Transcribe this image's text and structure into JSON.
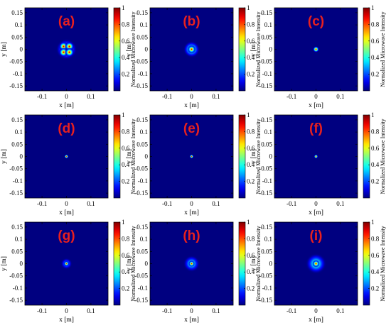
{
  "chart_data": [
    {
      "label": "(a)",
      "type": "heatmap",
      "xlabel": "x  [m]",
      "ylabel": "y  [m]",
      "colorbar_label": "Normalized Microwave Intensity",
      "xticks": [
        "-0.1",
        "0",
        "0.1"
      ],
      "yticks": [
        "0.15",
        "0.1",
        "0.05",
        "0",
        "-0.05",
        "-0.1",
        "-0.15"
      ],
      "xlim": [
        -0.17,
        0.17
      ],
      "ylim": [
        -0.17,
        0.17
      ],
      "colorbar_ticks": [
        "1",
        "0.8",
        "0.6",
        "0.4",
        "0.2"
      ],
      "crange": [
        0,
        1
      ],
      "spots": [
        {
          "x": -0.012,
          "y": 0.012,
          "intensity": 1.0,
          "radius": 0.009
        },
        {
          "x": 0.012,
          "y": 0.012,
          "intensity": 1.0,
          "radius": 0.009
        },
        {
          "x": -0.012,
          "y": -0.012,
          "intensity": 1.0,
          "radius": 0.009
        },
        {
          "x": 0.012,
          "y": -0.012,
          "intensity": 1.0,
          "radius": 0.009
        },
        {
          "x": 0,
          "y": 0,
          "intensity": 0.75,
          "radius": 0.02
        }
      ]
    },
    {
      "label": "(b)",
      "type": "heatmap",
      "xlabel": "x  [m]",
      "ylabel": "y  [m]",
      "colorbar_label": "Normalized Microwave Intensity",
      "xticks": [
        "-0.1",
        "0",
        "0.1"
      ],
      "yticks": [
        "0.15",
        "0.1",
        "0.05",
        "0",
        "-0.05",
        "-0.1",
        "-0.15"
      ],
      "xlim": [
        -0.17,
        0.17
      ],
      "ylim": [
        -0.17,
        0.17
      ],
      "colorbar_ticks": [
        "1",
        "0.8",
        "0.6",
        "0.4",
        "0.2"
      ],
      "crange": [
        0,
        1
      ],
      "spots": [
        {
          "x": 0,
          "y": 0,
          "intensity": 1.0,
          "radius": 0.008
        },
        {
          "x": 0,
          "y": 0,
          "intensity": 0.7,
          "radius": 0.016
        }
      ]
    },
    {
      "label": "(c)",
      "type": "heatmap",
      "xlabel": "x  [m]",
      "ylabel": "y  [m]",
      "colorbar_label": "Normalized Microwave Intensity",
      "xticks": [
        "-0.1",
        "0",
        "0.1"
      ],
      "yticks": [
        "0.15",
        "0.1",
        "0.05",
        "0",
        "-0.05",
        "-0.1",
        "-0.15"
      ],
      "xlim": [
        -0.17,
        0.17
      ],
      "ylim": [
        -0.17,
        0.17
      ],
      "colorbar_ticks": [
        "1",
        "0.8",
        "0.6",
        "0.4",
        "0.2"
      ],
      "crange": [
        0,
        1
      ],
      "spots": [
        {
          "x": 0,
          "y": 0,
          "intensity": 1.0,
          "radius": 0.006
        }
      ]
    },
    {
      "label": "(d)",
      "type": "heatmap",
      "xlabel": "x  [m]",
      "ylabel": "y  [m]",
      "colorbar_label": "Normalized Microwave Intensity",
      "xticks": [
        "-0.1",
        "0",
        "0.1"
      ],
      "yticks": [
        "0.15",
        "0.1",
        "0.05",
        "0",
        "-0.05",
        "-0.1",
        "-0.15"
      ],
      "xlim": [
        -0.17,
        0.17
      ],
      "ylim": [
        -0.17,
        0.17
      ],
      "colorbar_ticks": [
        "1",
        "0.8",
        "0.6",
        "0.4",
        "0.2"
      ],
      "crange": [
        0,
        1
      ],
      "spots": [
        {
          "x": 0,
          "y": 0,
          "intensity": 1.0,
          "radius": 0.004
        }
      ]
    },
    {
      "label": "(e)",
      "type": "heatmap",
      "xlabel": "x  [m]",
      "ylabel": "y  [m]",
      "colorbar_label": "Normalized Microwave Intensity",
      "xticks": [
        "-0.1",
        "0",
        "0.1"
      ],
      "yticks": [
        "0.15",
        "0.1",
        "0.05",
        "0",
        "-0.05",
        "-0.1",
        "-0.15"
      ],
      "xlim": [
        -0.17,
        0.17
      ],
      "ylim": [
        -0.17,
        0.17
      ],
      "colorbar_ticks": [
        "1",
        "0.8",
        "0.6",
        "0.4",
        "0.2"
      ],
      "crange": [
        0,
        1
      ],
      "spots": [
        {
          "x": 0,
          "y": 0,
          "intensity": 1.0,
          "radius": 0.004
        }
      ]
    },
    {
      "label": "(f)",
      "type": "heatmap",
      "xlabel": "x  [m]",
      "ylabel": "y  [m]",
      "colorbar_label": "Normalized Microwave Intensity",
      "xticks": [
        "-0.1",
        "0",
        "0.1"
      ],
      "yticks": [
        "0.15",
        "0.1",
        "0.05",
        "0",
        "-0.05",
        "-0.1",
        "-0.15"
      ],
      "xlim": [
        -0.17,
        0.17
      ],
      "ylim": [
        -0.17,
        0.17
      ],
      "colorbar_ticks": [
        "1",
        "0.8",
        "0.6",
        "0.4",
        "0.2"
      ],
      "crange": [
        0,
        1
      ],
      "spots": [
        {
          "x": 0,
          "y": 0,
          "intensity": 1.0,
          "radius": 0.004
        }
      ]
    },
    {
      "label": "(g)",
      "type": "heatmap",
      "xlabel": "x  [m]",
      "ylabel": "y  [m]",
      "colorbar_label": "Normalized Microwave Intensity",
      "xticks": [
        "-0.1",
        "0",
        "0.1"
      ],
      "yticks": [
        "0.15",
        "0.1",
        "0.05",
        "0",
        "-0.05",
        "-0.1",
        "-0.15"
      ],
      "xlim": [
        -0.17,
        0.17
      ],
      "ylim": [
        -0.17,
        0.17
      ],
      "colorbar_ticks": [
        "1",
        "0.8",
        "0.6",
        "0.4",
        "0.2"
      ],
      "crange": [
        0,
        1
      ],
      "spots": [
        {
          "x": 0,
          "y": 0,
          "intensity": 1.0,
          "radius": 0.005
        },
        {
          "x": 0,
          "y": 0,
          "intensity": 0.45,
          "radius": 0.011
        }
      ]
    },
    {
      "label": "(h)",
      "type": "heatmap",
      "xlabel": "x  [m]",
      "ylabel": "y  [m]",
      "colorbar_label": "Normalized Microwave Intensity",
      "xticks": [
        "-0.1",
        "0",
        "0.1"
      ],
      "yticks": [
        "0.15",
        "0.1",
        "0.05",
        "0",
        "-0.05",
        "-0.1",
        "-0.15"
      ],
      "xlim": [
        -0.17,
        0.17
      ],
      "ylim": [
        -0.17,
        0.17
      ],
      "colorbar_ticks": [
        "1",
        "0.8",
        "0.6",
        "0.4",
        "0.2"
      ],
      "crange": [
        0,
        1
      ],
      "spots": [
        {
          "x": 0,
          "y": 0,
          "intensity": 1.0,
          "radius": 0.006
        },
        {
          "x": 0,
          "y": 0,
          "intensity": 0.55,
          "radius": 0.016
        }
      ]
    },
    {
      "label": "(i)",
      "type": "heatmap",
      "xlabel": "x  [m]",
      "ylabel": "y  [m]",
      "colorbar_label": "Normalized Microwave Intensity",
      "xticks": [
        "-0.1",
        "0",
        "0.1"
      ],
      "yticks": [
        "0.15",
        "0.1",
        "0.05",
        "0",
        "-0.05",
        "-0.1",
        "-0.15"
      ],
      "xlim": [
        -0.17,
        0.17
      ],
      "ylim": [
        -0.17,
        0.17
      ],
      "colorbar_ticks": [
        "1",
        "0.8",
        "0.6",
        "0.4",
        "0.2"
      ],
      "crange": [
        0,
        1
      ],
      "spots": [
        {
          "x": 0,
          "y": 0,
          "intensity": 1.0,
          "radius": 0.007
        },
        {
          "x": 0,
          "y": 0,
          "intensity": 0.6,
          "radius": 0.02
        }
      ]
    }
  ]
}
